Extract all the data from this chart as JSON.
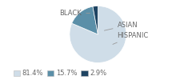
{
  "labels": [
    "BLACK",
    "HISPANIC",
    "ASIAN"
  ],
  "values": [
    81.4,
    15.7,
    2.9
  ],
  "colors": [
    "#cfdde8",
    "#5b8fa8",
    "#1e4462"
  ],
  "legend_labels": [
    "81.4%",
    "15.7%",
    "2.9%"
  ],
  "startangle": 90,
  "font_size": 6.0,
  "label_color": "#666666",
  "line_color": "#999999"
}
